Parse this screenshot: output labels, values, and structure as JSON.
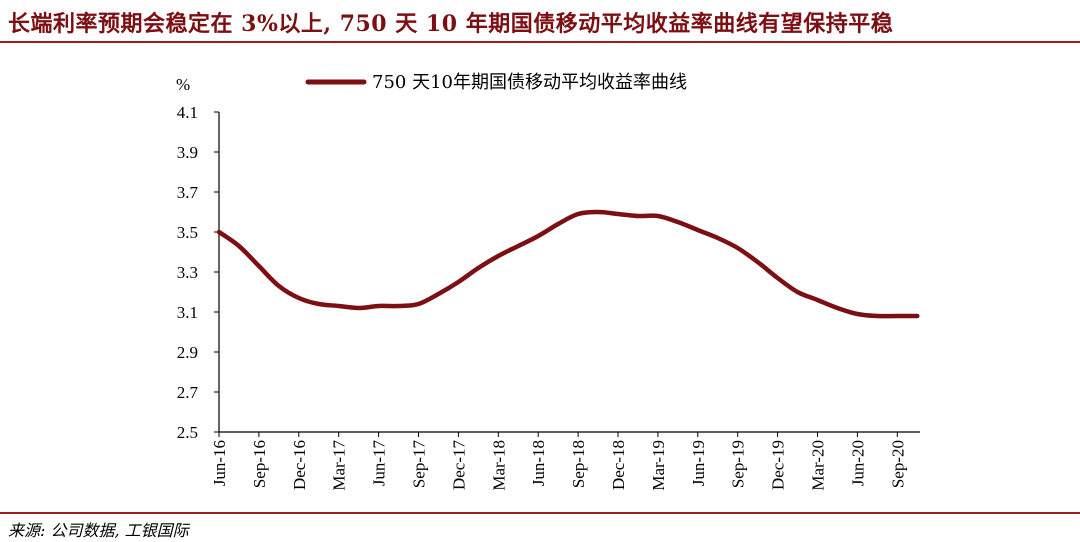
{
  "header": {
    "title": "长端利率预期会稳定在 3%以上, 750  天 10 年期国债移动平均收益率曲线有望保持平稳"
  },
  "footer": {
    "source": "来源: 公司数据, 工银国际"
  },
  "colors": {
    "accent": "#7b0f12",
    "line": "#7b0f12",
    "rule": "#a01c1f"
  },
  "chart_data": {
    "type": "line",
    "ylabel": "%",
    "ylim": [
      2.5,
      4.1
    ],
    "yticks": [
      "4.1",
      "3.9",
      "3.7",
      "3.5",
      "3.3",
      "3.1",
      "2.9",
      "2.7",
      "2.5"
    ],
    "categories": [
      "Jun-16",
      "Sep-16",
      "Dec-16",
      "Mar-17",
      "Jun-17",
      "Sep-17",
      "Dec-17",
      "Mar-18",
      "Jun-18",
      "Sep-18",
      "Dec-18",
      "Mar-19",
      "Jun-19",
      "Sep-19",
      "Dec-19",
      "Mar-20",
      "Jun-20",
      "Sep-20"
    ],
    "legend_position": "top",
    "grid": false,
    "series": [
      {
        "name": "750 天10年期国债移动平均收益率曲线",
        "x": [
          0,
          0.5,
          1,
          1.5,
          2,
          2.5,
          3,
          3.5,
          4,
          4.5,
          5,
          5.5,
          6,
          6.5,
          7,
          7.5,
          8,
          8.5,
          9,
          9.5,
          10,
          10.5,
          11,
          11.5,
          12,
          12.5,
          13,
          13.5,
          14,
          14.5,
          15,
          15.5,
          16,
          16.5,
          17,
          17.5
        ],
        "values": [
          3.5,
          3.43,
          3.33,
          3.23,
          3.17,
          3.14,
          3.13,
          3.12,
          3.13,
          3.13,
          3.14,
          3.19,
          3.25,
          3.32,
          3.38,
          3.43,
          3.48,
          3.54,
          3.59,
          3.6,
          3.59,
          3.58,
          3.58,
          3.55,
          3.51,
          3.47,
          3.42,
          3.35,
          3.27,
          3.2,
          3.16,
          3.12,
          3.09,
          3.08,
          3.08,
          3.08
        ]
      }
    ]
  }
}
